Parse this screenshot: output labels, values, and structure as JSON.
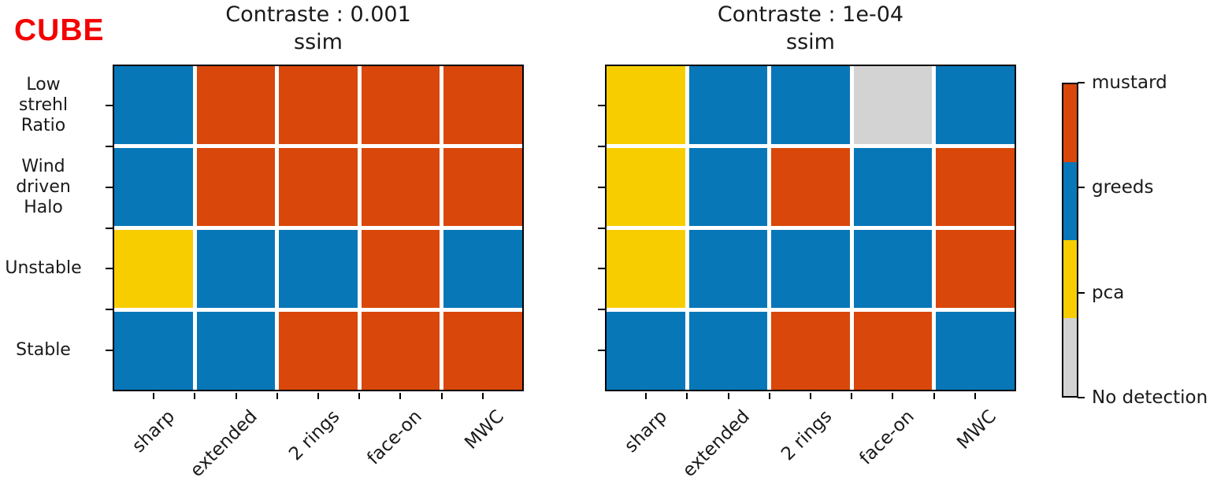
{
  "figure_label": "CUBE",
  "colors": {
    "mustard": "#d9470b",
    "greeds": "#0877b8",
    "pca": "#f8cd00",
    "no_detection": "#d3d3d3",
    "figure_label_color": "#f40000"
  },
  "chart_data": [
    {
      "type": "heatmap",
      "title": "Contraste : 0.001",
      "subtitle": "ssim",
      "x_categories": [
        "sharp",
        "extended",
        "2 rings",
        "face-on",
        "MWC"
      ],
      "y_categories": [
        "Low strehl Ratio",
        "Wind driven Halo",
        "Unstable",
        "Stable"
      ],
      "y_tick_labels": [
        [
          "Low",
          "strehl",
          "Ratio"
        ],
        [
          "Wind",
          "driven",
          "Halo"
        ],
        [
          "Unstable"
        ],
        [
          "Stable"
        ]
      ],
      "values": [
        [
          "greeds",
          "mustard",
          "mustard",
          "mustard",
          "mustard"
        ],
        [
          "greeds",
          "mustard",
          "mustard",
          "mustard",
          "mustard"
        ],
        [
          "pca",
          "greeds",
          "greeds",
          "mustard",
          "greeds"
        ],
        [
          "greeds",
          "greeds",
          "mustard",
          "mustard",
          "mustard"
        ]
      ]
    },
    {
      "type": "heatmap",
      "title": "Contraste : 1e-04",
      "subtitle": "ssim",
      "x_categories": [
        "sharp",
        "extended",
        "2 rings",
        "face-on",
        "MWC"
      ],
      "y_categories": [
        "Low strehl Ratio",
        "Wind driven Halo",
        "Unstable",
        "Stable"
      ],
      "values": [
        [
          "pca",
          "greeds",
          "greeds",
          "no_detection",
          "greeds"
        ],
        [
          "pca",
          "greeds",
          "mustard",
          "greeds",
          "mustard"
        ],
        [
          "pca",
          "greeds",
          "greeds",
          "greeds",
          "mustard"
        ],
        [
          "greeds",
          "greeds",
          "mustard",
          "mustard",
          "greeds"
        ]
      ]
    }
  ],
  "legend": {
    "entries": [
      {
        "key": "mustard",
        "label": "mustard"
      },
      {
        "key": "greeds",
        "label": "greeds"
      },
      {
        "key": "pca",
        "label": "pca"
      },
      {
        "key": "no_detection",
        "label": "No detection"
      }
    ]
  }
}
